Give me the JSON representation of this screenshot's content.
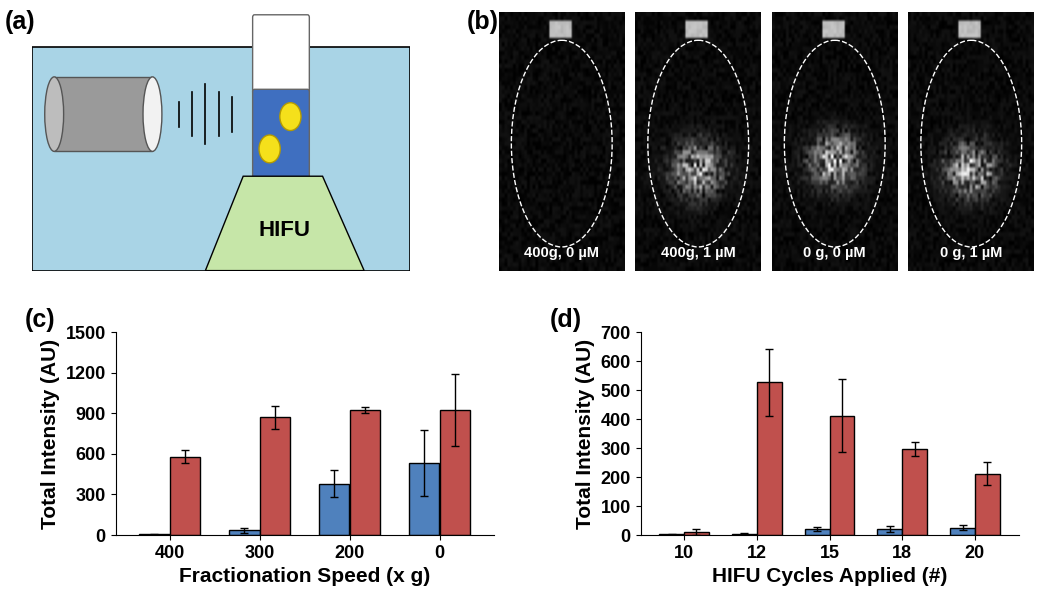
{
  "diagram": {
    "title": "(a)",
    "label": "HIFU"
  },
  "images": {
    "title": "(b)",
    "labels": [
      "400g, 0 µM",
      "400g, 1 µM",
      "0 g, 0 µM",
      "0 g, 1 µM"
    ]
  },
  "chart_data": [
    {
      "type": "bar",
      "title": "(c)",
      "x_label": "Fractionation Speed (x g)",
      "y_label": "Total Intensity (AU)",
      "categories": [
        "400",
        "300",
        "200",
        "0"
      ],
      "series": [
        {
          "color": "#4f81bd",
          "values": [
            5,
            35,
            380,
            535
          ],
          "errors": [
            2,
            20,
            100,
            245
          ]
        },
        {
          "color": "#c0504d",
          "values": [
            580,
            870,
            925,
            925
          ],
          "errors": [
            50,
            85,
            20,
            265
          ]
        }
      ],
      "ylim": [
        0,
        1500
      ],
      "yticks": [
        0,
        300,
        600,
        900,
        1200,
        1500
      ],
      "grid": false
    },
    {
      "type": "bar",
      "title": "(d)",
      "x_label": "HIFU Cycles Applied (#)",
      "y_label": "Total Intensity (AU)",
      "categories": [
        "10",
        "12",
        "15",
        "18",
        "20"
      ],
      "series": [
        {
          "color": "#4f81bd",
          "values": [
            2,
            5,
            20,
            22,
            25
          ],
          "errors": [
            1,
            3,
            7,
            10,
            8
          ]
        },
        {
          "color": "#c0504d",
          "values": [
            10,
            527,
            412,
            296,
            212
          ],
          "errors": [
            10,
            115,
            125,
            25,
            40
          ]
        }
      ],
      "ylim": [
        0,
        700
      ],
      "yticks": [
        0,
        100,
        200,
        300,
        400,
        500,
        600,
        700
      ],
      "grid": false
    }
  ]
}
